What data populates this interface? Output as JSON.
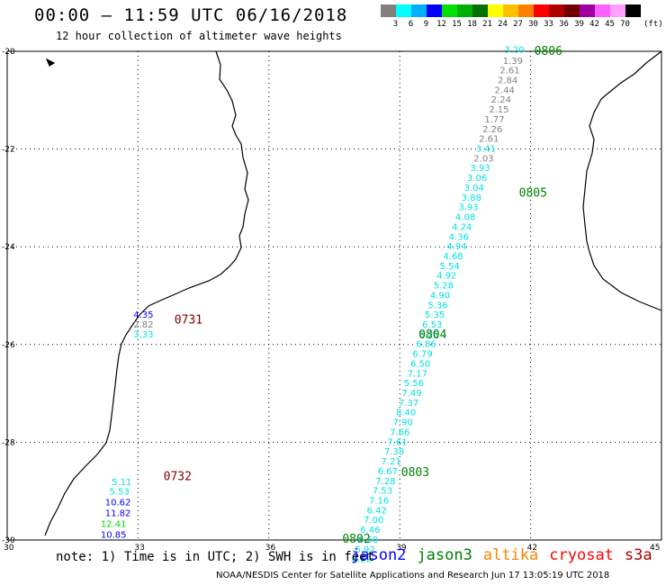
{
  "header": {
    "title": "00:00 – 11:59 UTC 06/16/2018",
    "subtitle": "12 hour collection of altimeter wave heights"
  },
  "legend": {
    "colors": [
      "#808080",
      "#00ffff",
      "#00b0ff",
      "#0000ff",
      "#00e000",
      "#00b000",
      "#007000",
      "#ffff00",
      "#ffc000",
      "#ff8000",
      "#ff0000",
      "#b00000",
      "#700000",
      "#a000a0",
      "#ff60ff",
      "#ffa0ff",
      "#000000"
    ],
    "labels": [
      "3",
      "6",
      "9",
      "12",
      "15",
      "18",
      "21",
      "24",
      "27",
      "30",
      "33",
      "36",
      "39",
      "42",
      "45",
      "70"
    ],
    "unit": "(ft)"
  },
  "map": {
    "lat_ticks": [
      "-20",
      "-22",
      "-24",
      "-26",
      "-28",
      "-30"
    ],
    "lon_ticks": [
      "30",
      "33",
      "36",
      "39",
      "42",
      "45"
    ],
    "lon_range": [
      30,
      45
    ],
    "lat_range": [
      -30,
      -20
    ]
  },
  "passes": [
    {
      "label": "0806",
      "lon": 42.0,
      "lat": -20.0,
      "color": "#008000"
    },
    {
      "label": "0805",
      "lon": 41.65,
      "lat": -22.9,
      "color": "#008000"
    },
    {
      "label": "0804",
      "lon": 39.35,
      "lat": -25.8,
      "color": "#008000"
    },
    {
      "label": "0803",
      "lon": 38.95,
      "lat": -28.62,
      "color": "#008000"
    },
    {
      "label": "0802",
      "lon": 37.6,
      "lat": -29.98,
      "color": "#008000"
    },
    {
      "label": "0731",
      "lon": 33.75,
      "lat": -25.5,
      "color": "#800000"
    },
    {
      "label": "0732",
      "lon": 33.5,
      "lat": -28.7,
      "color": "#800000"
    }
  ],
  "readings": [
    {
      "v": "3.20",
      "lon": 41.6,
      "lat": -19.95,
      "color": "#00e0e0"
    },
    {
      "v": "1.39",
      "lon": 41.57,
      "lat": -20.18,
      "color": "#808080"
    },
    {
      "v": "2.61",
      "lon": 41.5,
      "lat": -20.38,
      "color": "#808080"
    },
    {
      "v": "2.84",
      "lon": 41.45,
      "lat": -20.58,
      "color": "#808080"
    },
    {
      "v": "2.44",
      "lon": 41.38,
      "lat": -20.78,
      "color": "#808080"
    },
    {
      "v": "2.24",
      "lon": 41.3,
      "lat": -20.98,
      "color": "#808080"
    },
    {
      "v": "2.15",
      "lon": 41.25,
      "lat": -21.18,
      "color": "#808080"
    },
    {
      "v": "1.77",
      "lon": 41.15,
      "lat": -21.38,
      "color": "#808080"
    },
    {
      "v": "2.26",
      "lon": 41.1,
      "lat": -21.58,
      "color": "#808080"
    },
    {
      "v": "2.61",
      "lon": 41.02,
      "lat": -21.78,
      "color": "#808080"
    },
    {
      "v": "3.41",
      "lon": 40.95,
      "lat": -21.98,
      "color": "#00e0e0"
    },
    {
      "v": "2.03",
      "lon": 40.9,
      "lat": -22.18,
      "color": "#808080"
    },
    {
      "v": "3.93",
      "lon": 40.82,
      "lat": -22.38,
      "color": "#00e0e0"
    },
    {
      "v": "3.06",
      "lon": 40.75,
      "lat": -22.58,
      "color": "#00e0e0"
    },
    {
      "v": "3.04",
      "lon": 40.68,
      "lat": -22.78,
      "color": "#00e0e0"
    },
    {
      "v": "3.88",
      "lon": 40.62,
      "lat": -22.98,
      "color": "#00e0e0"
    },
    {
      "v": "3.93",
      "lon": 40.55,
      "lat": -23.18,
      "color": "#00e0e0"
    },
    {
      "v": "4.08",
      "lon": 40.48,
      "lat": -23.38,
      "color": "#00e0e0"
    },
    {
      "v": "4.24",
      "lon": 40.4,
      "lat": -23.58,
      "color": "#00e0e0"
    },
    {
      "v": "4.36",
      "lon": 40.33,
      "lat": -23.78,
      "color": "#00e0e0"
    },
    {
      "v": "4.94",
      "lon": 40.28,
      "lat": -23.98,
      "color": "#00e0e0"
    },
    {
      "v": "4.68",
      "lon": 40.2,
      "lat": -24.18,
      "color": "#00e0e0"
    },
    {
      "v": "5.54",
      "lon": 40.12,
      "lat": -24.38,
      "color": "#00e0e0"
    },
    {
      "v": "4.92",
      "lon": 40.05,
      "lat": -24.58,
      "color": "#00e0e0"
    },
    {
      "v": "5.28",
      "lon": 39.98,
      "lat": -24.78,
      "color": "#00e0e0"
    },
    {
      "v": "4.90",
      "lon": 39.9,
      "lat": -24.98,
      "color": "#00e0e0"
    },
    {
      "v": "5.36",
      "lon": 39.85,
      "lat": -25.18,
      "color": "#00e0e0"
    },
    {
      "v": "5.35",
      "lon": 39.78,
      "lat": -25.38,
      "color": "#00e0e0"
    },
    {
      "v": "6.53",
      "lon": 39.72,
      "lat": -25.58,
      "color": "#00e0e0"
    },
    {
      "v": "6.25",
      "lon": 39.65,
      "lat": -25.78,
      "color": "#00e0e0"
    },
    {
      "v": "6.86",
      "lon": 39.58,
      "lat": -25.98,
      "color": "#00e0e0"
    },
    {
      "v": "6.79",
      "lon": 39.5,
      "lat": -26.18,
      "color": "#00e0e0"
    },
    {
      "v": "6.50",
      "lon": 39.45,
      "lat": -26.38,
      "color": "#00e0e0"
    },
    {
      "v": "7.17",
      "lon": 39.38,
      "lat": -26.58,
      "color": "#00e0e0"
    },
    {
      "v": "5.56",
      "lon": 39.3,
      "lat": -26.78,
      "color": "#00e0e0"
    },
    {
      "v": "7.49",
      "lon": 39.25,
      "lat": -26.98,
      "color": "#00e0e0"
    },
    {
      "v": "7.37",
      "lon": 39.18,
      "lat": -27.18,
      "color": "#00e0e0"
    },
    {
      "v": "8.40",
      "lon": 39.12,
      "lat": -27.38,
      "color": "#00e0e0"
    },
    {
      "v": "7.90",
      "lon": 39.05,
      "lat": -27.58,
      "color": "#00e0e0"
    },
    {
      "v": "7.66",
      "lon": 38.98,
      "lat": -27.78,
      "color": "#00e0e0"
    },
    {
      "v": "7.61",
      "lon": 38.92,
      "lat": -27.98,
      "color": "#00e0e0"
    },
    {
      "v": "7.38",
      "lon": 38.85,
      "lat": -28.18,
      "color": "#00e0e0"
    },
    {
      "v": "7.21",
      "lon": 38.78,
      "lat": -28.38,
      "color": "#00e0e0"
    },
    {
      "v": "6.67",
      "lon": 38.7,
      "lat": -28.58,
      "color": "#00e0e0"
    },
    {
      "v": "7.28",
      "lon": 38.65,
      "lat": -28.78,
      "color": "#00e0e0"
    },
    {
      "v": "7.53",
      "lon": 38.58,
      "lat": -28.98,
      "color": "#00e0e0"
    },
    {
      "v": "7.16",
      "lon": 38.5,
      "lat": -29.18,
      "color": "#00e0e0"
    },
    {
      "v": "6.42",
      "lon": 38.45,
      "lat": -29.38,
      "color": "#00e0e0"
    },
    {
      "v": "7.00",
      "lon": 38.38,
      "lat": -29.58,
      "color": "#00e0e0"
    },
    {
      "v": "6.46",
      "lon": 38.3,
      "lat": -29.78,
      "color": "#00e0e0"
    },
    {
      "v": "6.68",
      "lon": 38.25,
      "lat": -29.98,
      "color": "#00e0e0"
    },
    {
      "v": "5.92",
      "lon": 38.18,
      "lat": -30.18,
      "color": "#00e0e0"
    },
    {
      "v": "6.22",
      "lon": 38.1,
      "lat": -30.38,
      "color": "#00e0e0"
    },
    {
      "v": "4.35",
      "lon": 33.1,
      "lat": -25.38,
      "color": "#0000ff"
    },
    {
      "v": "2.82",
      "lon": 33.1,
      "lat": -25.58,
      "color": "#808080"
    },
    {
      "v": "3.33",
      "lon": 33.1,
      "lat": -25.78,
      "color": "#00e0e0"
    },
    {
      "v": "5.11",
      "lon": 32.6,
      "lat": -28.8,
      "color": "#00e0e0"
    },
    {
      "v": "5.53",
      "lon": 32.55,
      "lat": -29.0,
      "color": "#00e0e0"
    },
    {
      "v": "10.62",
      "lon": 32.45,
      "lat": -29.22,
      "color": "#0000ff"
    },
    {
      "v": "11.82",
      "lon": 32.45,
      "lat": -29.44,
      "color": "#0000ff"
    },
    {
      "v": "12.41",
      "lon": 32.35,
      "lat": -29.66,
      "color": "#00e000"
    },
    {
      "v": "10.85",
      "lon": 32.35,
      "lat": -29.88,
      "color": "#0000ff"
    }
  ],
  "note": "note:  1) Time is in UTC;  2) SWH is in feet",
  "satellites": [
    {
      "name": "jason2",
      "color": "#0000ff"
    },
    {
      "name": "jason3",
      "color": "#008000"
    },
    {
      "name": "altika",
      "color": "#ff8000"
    },
    {
      "name": "cryosat",
      "color": "#ff0000"
    },
    {
      "name": "s3a",
      "color": "#b00000"
    }
  ],
  "footer": "NOAA/NESDIS Center for Satellite Applications and Research    Jun 17 13:05:19 UTC 2018"
}
